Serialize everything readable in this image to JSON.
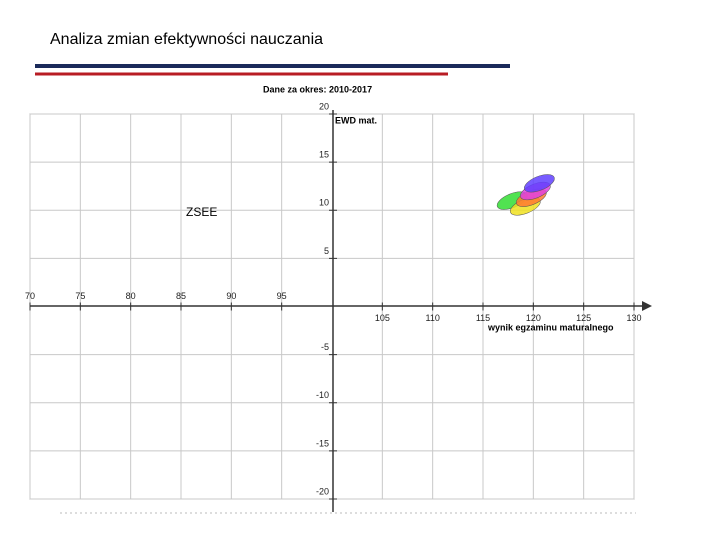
{
  "header": {
    "title": "Analiza zmian efektywności nauczania"
  },
  "chart_data": {
    "type": "ellipse",
    "title": "Dane za okres: 2010-2017",
    "x_label": "wynik egzaminu maturalnego",
    "y_label": "EWD mat.",
    "annotation": "ZSEE",
    "xlim": [
      70,
      130
    ],
    "ylim": [
      -20,
      20
    ],
    "xticks": [
      70,
      75,
      80,
      85,
      90,
      95,
      105,
      110,
      115,
      120,
      125,
      130
    ],
    "yticks": [
      -20,
      -15,
      -10,
      -5,
      5,
      10,
      15,
      20
    ],
    "grid": true,
    "series": [
      {
        "color": "#33dd33",
        "x": [
          117.9
        ],
        "y": [
          11.0
        ]
      },
      {
        "color": "#f0e020",
        "x": [
          119.2
        ],
        "y": [
          10.4
        ]
      },
      {
        "color": "#ff7a30",
        "x": [
          119.8
        ],
        "y": [
          11.3
        ]
      },
      {
        "color": "#e040e0",
        "x": [
          120.2
        ],
        "y": [
          12.0
        ]
      },
      {
        "color": "#6040ff",
        "x": [
          120.6
        ],
        "y": [
          12.8
        ]
      }
    ]
  }
}
